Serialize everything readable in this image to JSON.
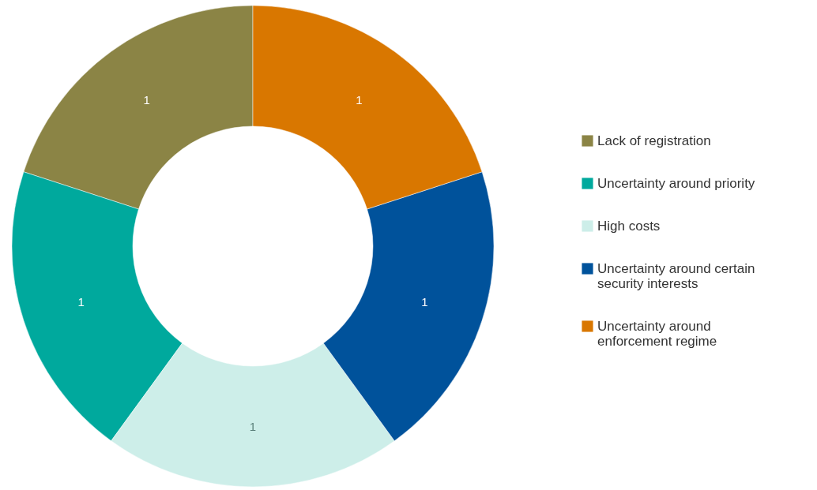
{
  "chart_data": {
    "type": "donut",
    "categories": [
      "Lack of registration",
      "Uncertainty around priority",
      "High costs",
      "Uncertainty around certain security interests",
      "Uncertainty around enforcement regime"
    ],
    "values": [
      1,
      1,
      1,
      1,
      1
    ],
    "colors": [
      "#8b8445",
      "#00a99d",
      "#cdeee9",
      "#00529b",
      "#d97700"
    ],
    "data_labels": true,
    "legend": "right"
  }
}
